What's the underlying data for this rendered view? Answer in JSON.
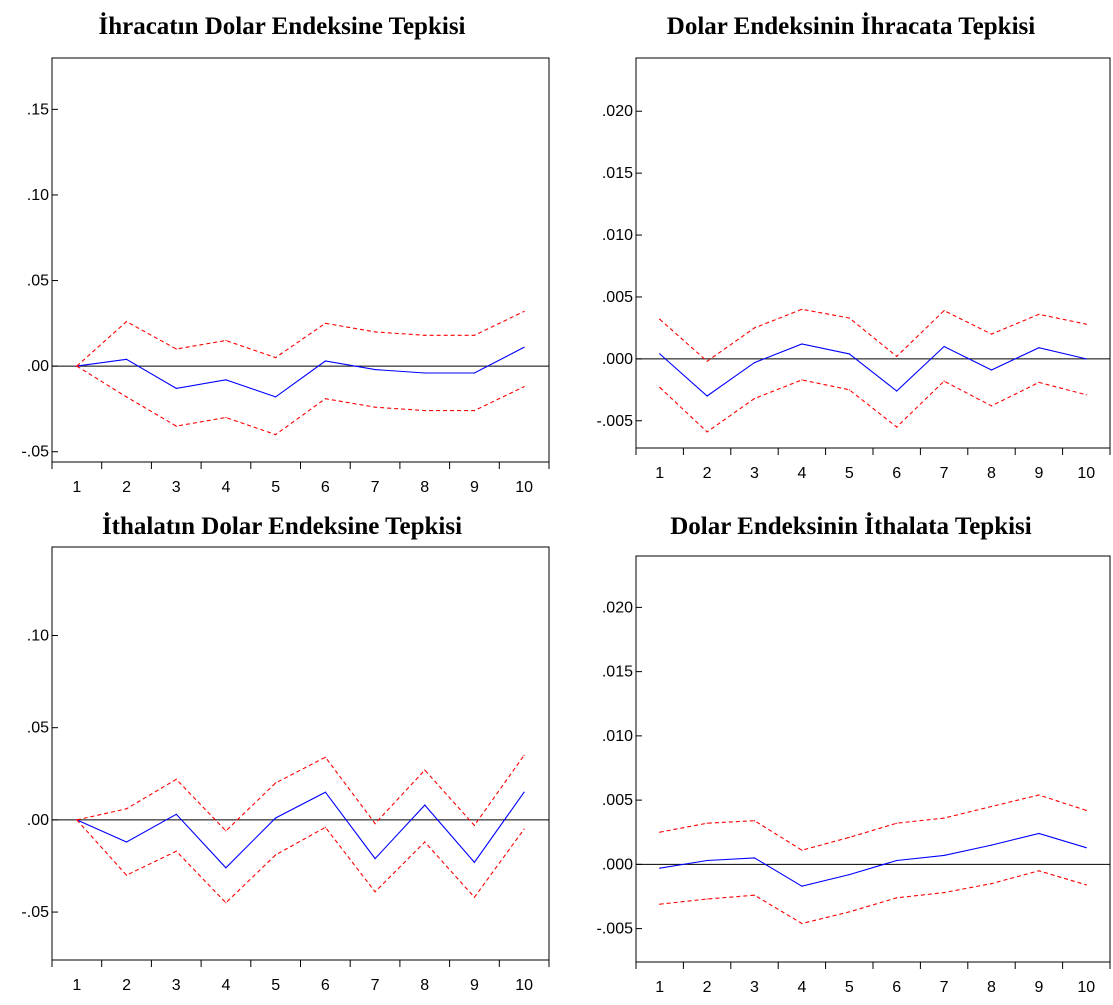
{
  "colors": {
    "response": "#0000ff",
    "band": "#ff0000",
    "axis": "#000000",
    "zero_line": "#000000"
  },
  "chart_data": [
    {
      "type": "line",
      "title": "İhracatın Dolar Endeksine Tepkisi",
      "xlabel": "",
      "ylabel": "",
      "x": [
        1,
        2,
        3,
        4,
        5,
        6,
        7,
        8,
        9,
        10
      ],
      "ylim": [
        -0.056,
        0.18
      ],
      "yticks": [
        -0.05,
        0.0,
        0.05,
        0.1,
        0.15
      ],
      "ytick_labels": [
        "-.05",
        ".00",
        ".05",
        ".10",
        ".15"
      ],
      "grid": false,
      "series": [
        {
          "role": "response",
          "style": "solid",
          "values": [
            0.0,
            0.004,
            -0.013,
            -0.008,
            -0.018,
            0.003,
            -0.002,
            -0.004,
            -0.004,
            0.011
          ]
        },
        {
          "role": "upper",
          "style": "dashed",
          "values": [
            0.0,
            0.026,
            0.01,
            0.015,
            0.005,
            0.025,
            0.02,
            0.018,
            0.018,
            0.032
          ]
        },
        {
          "role": "lower",
          "style": "dashed",
          "values": [
            0.0,
            -0.018,
            -0.035,
            -0.03,
            -0.04,
            -0.019,
            -0.024,
            -0.026,
            -0.026,
            -0.012
          ]
        }
      ]
    },
    {
      "type": "line",
      "title": "Dolar Endeksinin İhracata Tepkisi",
      "xlabel": "",
      "ylabel": "",
      "x": [
        1,
        2,
        3,
        4,
        5,
        6,
        7,
        8,
        9,
        10
      ],
      "ylim": [
        -0.0072,
        0.0243
      ],
      "yticks": [
        -0.005,
        0.0,
        0.005,
        0.01,
        0.015,
        0.02
      ],
      "ytick_labels": [
        "-.005",
        ".000",
        ".005",
        ".010",
        ".015",
        ".020"
      ],
      "grid": false,
      "series": [
        {
          "role": "response",
          "style": "solid",
          "values": [
            0.0004,
            -0.003,
            -0.0003,
            0.0012,
            0.0004,
            -0.0026,
            0.001,
            -0.0009,
            0.0009,
            0.0
          ]
        },
        {
          "role": "upper",
          "style": "dashed",
          "values": [
            0.0032,
            -0.0002,
            0.0025,
            0.004,
            0.0033,
            0.0002,
            0.0039,
            0.002,
            0.0036,
            0.0028
          ]
        },
        {
          "role": "lower",
          "style": "dashed",
          "values": [
            -0.0023,
            -0.0059,
            -0.0032,
            -0.0017,
            -0.0025,
            -0.0055,
            -0.0018,
            -0.0038,
            -0.0019,
            -0.0029
          ]
        }
      ]
    },
    {
      "type": "line",
      "title": "İthalatın Dolar Endeksine Tepkisi",
      "xlabel": "",
      "ylabel": "",
      "x": [
        1,
        2,
        3,
        4,
        5,
        6,
        7,
        8,
        9,
        10
      ],
      "ylim": [
        -0.076,
        0.148
      ],
      "yticks": [
        -0.05,
        0.0,
        0.05,
        0.1
      ],
      "ytick_labels": [
        "-.05",
        ".00",
        ".05",
        ".10"
      ],
      "grid": false,
      "series": [
        {
          "role": "response",
          "style": "solid",
          "values": [
            0.0,
            -0.012,
            0.003,
            -0.026,
            0.001,
            0.015,
            -0.021,
            0.008,
            -0.023,
            0.015
          ]
        },
        {
          "role": "upper",
          "style": "dashed",
          "values": [
            0.0,
            0.006,
            0.022,
            -0.006,
            0.02,
            0.034,
            -0.002,
            0.027,
            -0.003,
            0.035
          ]
        },
        {
          "role": "lower",
          "style": "dashed",
          "values": [
            0.0,
            -0.03,
            -0.017,
            -0.045,
            -0.019,
            -0.004,
            -0.039,
            -0.012,
            -0.042,
            -0.005
          ]
        }
      ]
    },
    {
      "type": "line",
      "title": "Dolar Endeksinin İthalata Tepkisi",
      "xlabel": "",
      "ylabel": "",
      "x": [
        1,
        2,
        3,
        4,
        5,
        6,
        7,
        8,
        9,
        10
      ],
      "ylim": [
        -0.0076,
        0.024
      ],
      "yticks": [
        -0.005,
        0.0,
        0.005,
        0.01,
        0.015,
        0.02
      ],
      "ytick_labels": [
        "-.005",
        ".000",
        ".005",
        ".010",
        ".015",
        ".020"
      ],
      "grid": false,
      "series": [
        {
          "role": "response",
          "style": "solid",
          "values": [
            -0.0003,
            0.0003,
            0.0005,
            -0.0017,
            -0.0008,
            0.0003,
            0.0007,
            0.0015,
            0.0024,
            0.0013
          ]
        },
        {
          "role": "upper",
          "style": "dashed",
          "values": [
            0.0025,
            0.0032,
            0.0034,
            0.0011,
            0.0021,
            0.0032,
            0.0036,
            0.0045,
            0.0054,
            0.0042
          ]
        },
        {
          "role": "lower",
          "style": "dashed",
          "values": [
            -0.0031,
            -0.0027,
            -0.0024,
            -0.0046,
            -0.0037,
            -0.0026,
            -0.0022,
            -0.0015,
            -0.0005,
            -0.0016
          ]
        }
      ]
    }
  ]
}
